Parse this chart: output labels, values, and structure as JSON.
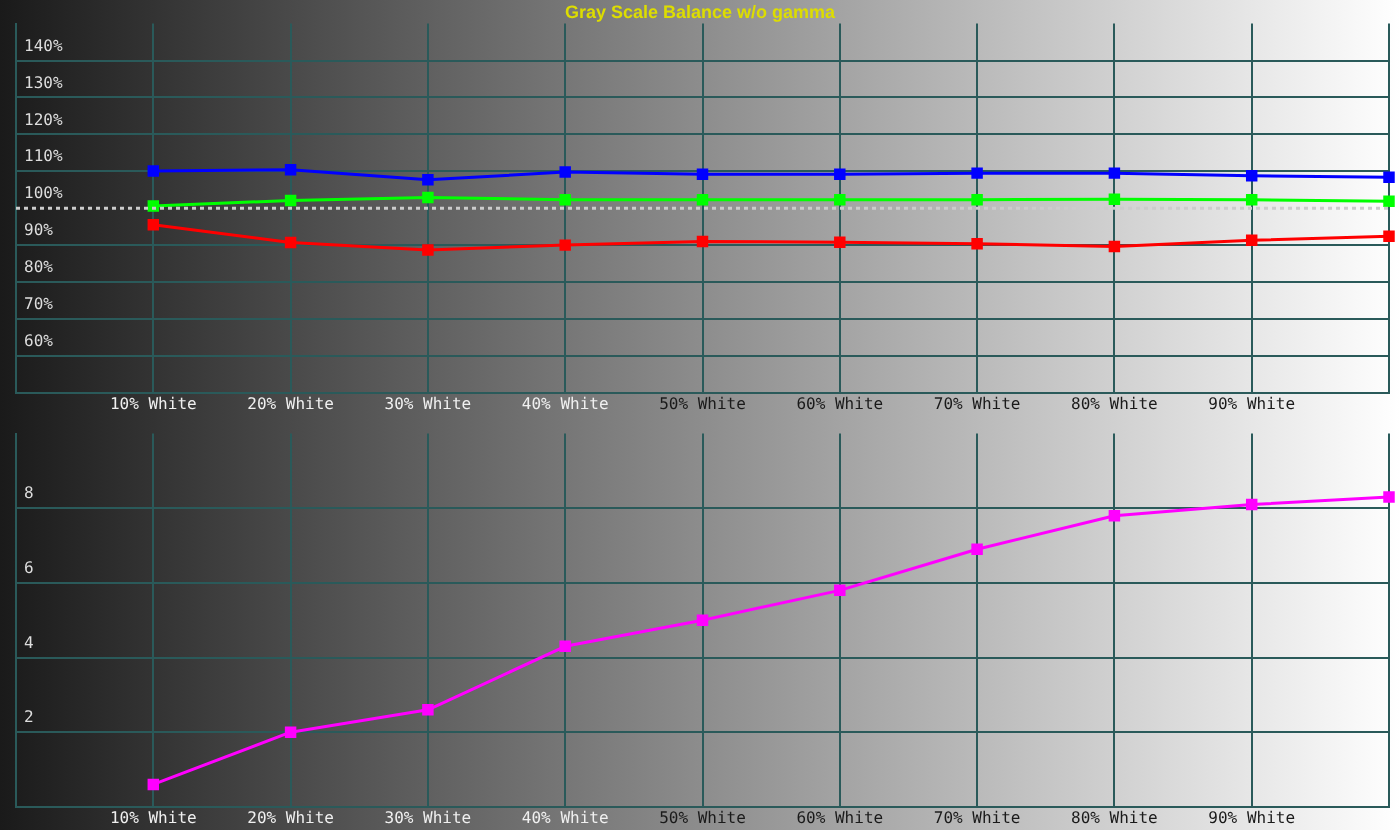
{
  "chart_data": [
    {
      "type": "line",
      "title": "Gray Scale Balance w/o gamma",
      "categories": [
        null,
        "10% White",
        "20% White",
        "30% White",
        "40% White",
        "50% White",
        "60% White",
        "70% White",
        "80% White",
        "90% White",
        null
      ],
      "series": [
        {
          "color": "#0000ff",
          "values": [
            null,
            110.1,
            110.4,
            107.7,
            109.8,
            109.2,
            109.2,
            109.5,
            109.5,
            108.8,
            108.4
          ]
        },
        {
          "color": "#00ff00",
          "values": [
            null,
            100.6,
            102.1,
            102.9,
            102.3,
            102.3,
            102.3,
            102.3,
            102.4,
            102.3,
            101.9
          ]
        },
        {
          "color": "#ff0000",
          "values": [
            null,
            95.5,
            90.7,
            88.7,
            90.0,
            91.0,
            90.8,
            90.4,
            89.6,
            91.3,
            92.4
          ]
        }
      ],
      "ylim": [
        50,
        150
      ],
      "yticks": [
        {
          "value": 60,
          "label": "60%"
        },
        {
          "value": 70,
          "label": "70%"
        },
        {
          "value": 80,
          "label": "80%"
        },
        {
          "value": 90,
          "label": "90%"
        },
        {
          "value": 110,
          "label": "110%"
        },
        {
          "value": 120,
          "label": "120%"
        },
        {
          "value": 130,
          "label": "130%"
        },
        {
          "value": 140,
          "label": "140%"
        },
        {
          "value": 100,
          "label": "100%"
        }
      ],
      "ref_lines": [
        {
          "axis": "y",
          "value": 100,
          "color": "#cccccc",
          "line_style": "dotted"
        }
      ],
      "grid": true,
      "marker": "square",
      "legend": false
    },
    {
      "type": "line",
      "categories": [
        null,
        "10% White",
        "20% White",
        "30% White",
        "40% White",
        "50% White",
        "60% White",
        "70% White",
        "80% White",
        "90% White",
        null
      ],
      "series": [
        {
          "color": "#ff00ff",
          "values": [
            null,
            0.6,
            2.0,
            2.6,
            4.3,
            5.0,
            5.8,
            6.9,
            7.8,
            8.1,
            8.3
          ]
        }
      ],
      "ylim": [
        0,
        10
      ],
      "yticks": [
        2,
        4,
        6,
        8
      ],
      "grid": true,
      "marker": "square",
      "legend": false
    }
  ]
}
